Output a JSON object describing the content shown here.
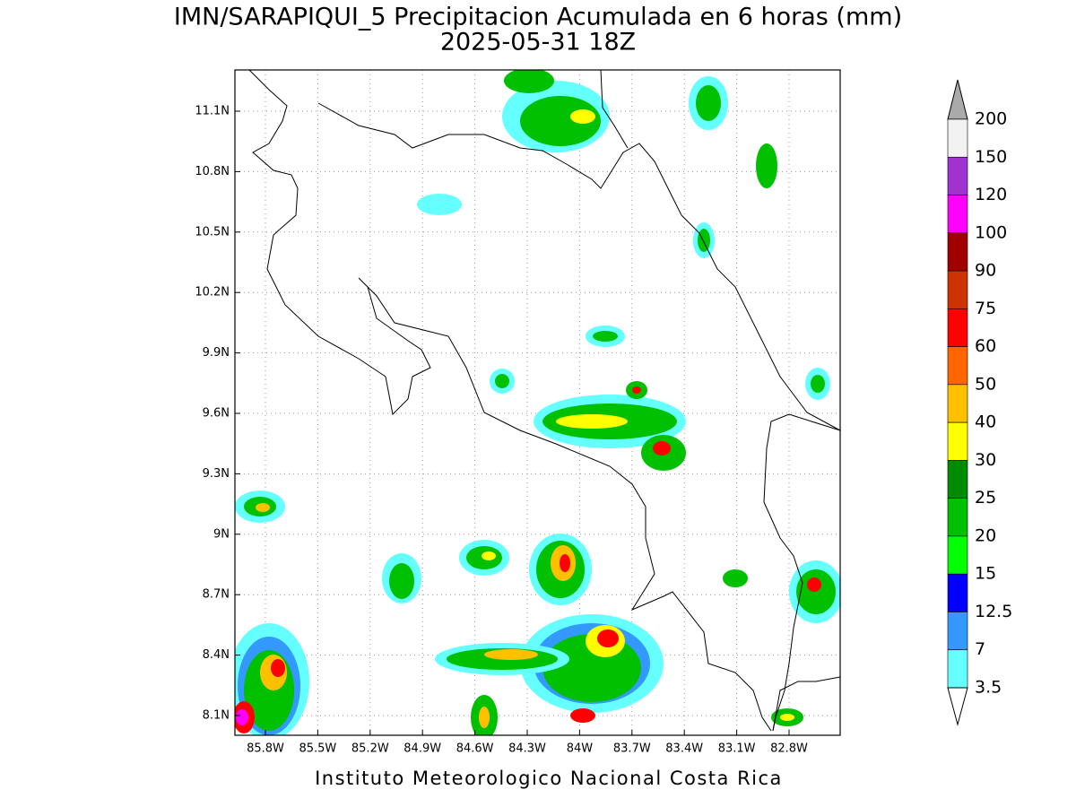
{
  "header": {
    "title": "IMN/SARAPIQUI_5 Precipitacion Acumulada en 6 horas (mm)",
    "subtitle": "2025-05-31 18Z"
  },
  "map": {
    "lon_labels": [
      "85.8W",
      "85.5W",
      "85.2W",
      "84.9W",
      "84.6W",
      "84.3W",
      "84W",
      "83.7W",
      "83.4W",
      "83.1W",
      "82.8W"
    ],
    "lat_labels": [
      "11.1N",
      "10.8N",
      "10.5N",
      "10.2N",
      "9.9N",
      "9.6N",
      "9.3N",
      "9N",
      "8.7N",
      "8.4N",
      "8.1N"
    ]
  },
  "legend": {
    "levels": [
      "200",
      "150",
      "120",
      "100",
      "90",
      "75",
      "60",
      "50",
      "40",
      "30",
      "25",
      "20",
      "15",
      "12.5",
      "7",
      "3.5"
    ],
    "colors": [
      "#f2f2f2",
      "#a033d0",
      "#ff00ff",
      "#a00000",
      "#cc3300",
      "#ff0000",
      "#ff6600",
      "#ffc000",
      "#ffff00",
      "#008c00",
      "#00c000",
      "#00ff00",
      "#0000ff",
      "#3399ff",
      "#66ffff"
    ],
    "over_color": "#aaaaaa",
    "under_color": "#ffffff"
  },
  "footer": "Instituto Meteorologico Nacional Costa Rica"
}
